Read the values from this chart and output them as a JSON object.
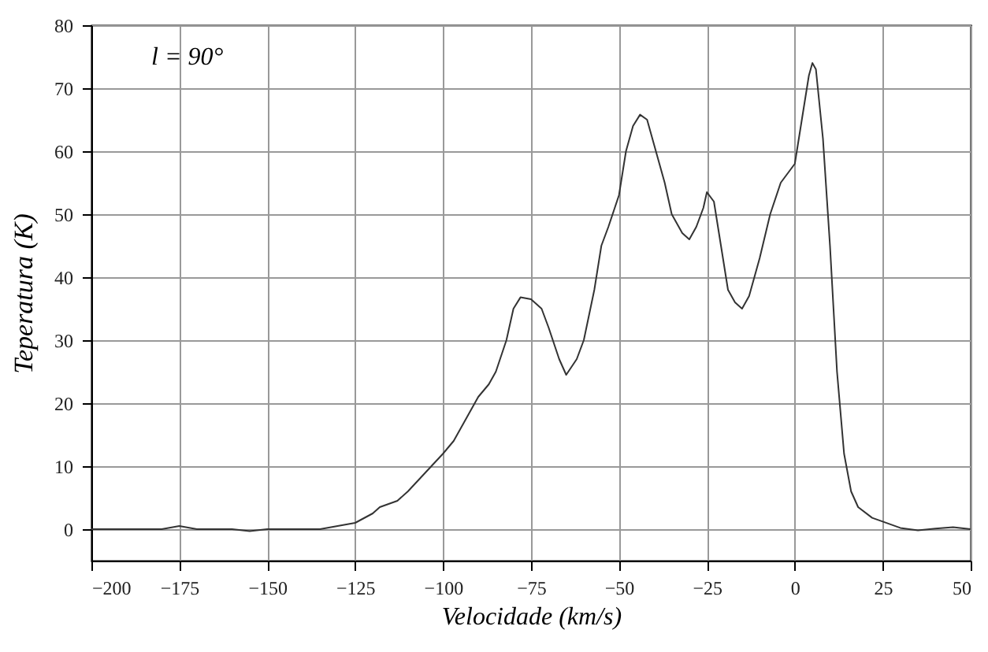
{
  "chart_data": {
    "type": "line",
    "xlabel": "Velocidade (km/s)",
    "ylabel": "Teperatura (K)",
    "annotations": [
      "l = 90°"
    ],
    "x": [
      -200,
      -190,
      -180,
      -175,
      -170,
      -160,
      -155,
      -150,
      -140,
      -135,
      -130,
      -125,
      -120,
      -118,
      -113,
      -110,
      -105,
      -100,
      -97,
      -93,
      -90,
      -87,
      -85,
      -82,
      -80,
      -78,
      -75,
      -72,
      -70,
      -67,
      -65,
      -62,
      -60,
      -57,
      -55,
      -53,
      -50,
      -48,
      -46,
      -44,
      -42,
      -40,
      -37,
      -35,
      -32,
      -30,
      -28,
      -26,
      -25,
      -23,
      -21,
      -19,
      -17,
      -15,
      -13,
      -10,
      -7,
      -4,
      0,
      2,
      4,
      5,
      6,
      8,
      10,
      12,
      14,
      16,
      18,
      22,
      25,
      30,
      35,
      40,
      45,
      50
    ],
    "series": [
      {
        "color": "#333333",
        "values": [
          0,
          0,
          0,
          0.5,
          0,
          0,
          -0.3,
          0,
          0,
          0,
          0.5,
          1,
          2.5,
          3.5,
          4.5,
          6,
          9,
          12,
          14,
          18,
          21,
          23,
          25,
          30,
          35,
          36.8,
          36.5,
          35,
          32,
          27,
          24.5,
          27,
          30,
          38,
          45,
          48,
          53,
          60,
          64,
          65.8,
          65,
          61,
          55,
          50,
          47,
          46,
          48,
          51,
          53.5,
          52,
          45,
          38,
          36,
          35,
          37,
          43,
          50,
          55,
          58,
          65,
          72,
          74,
          73,
          62,
          45,
          25,
          12,
          6,
          3.5,
          1.8,
          1.2,
          0.2,
          -0.2,
          0.1,
          0.3,
          0
        ]
      }
    ],
    "xlim": [
      -200,
      50
    ],
    "xticks": [
      -200,
      -175,
      -150,
      -125,
      -100,
      -75,
      -50,
      -25,
      0,
      25,
      50
    ],
    "ylim": [
      -5,
      80
    ],
    "yticks": [
      0,
      10,
      20,
      30,
      40,
      50,
      60,
      70,
      80
    ],
    "grid": true,
    "marker": "none",
    "line_style": "solid",
    "legend": false
  }
}
